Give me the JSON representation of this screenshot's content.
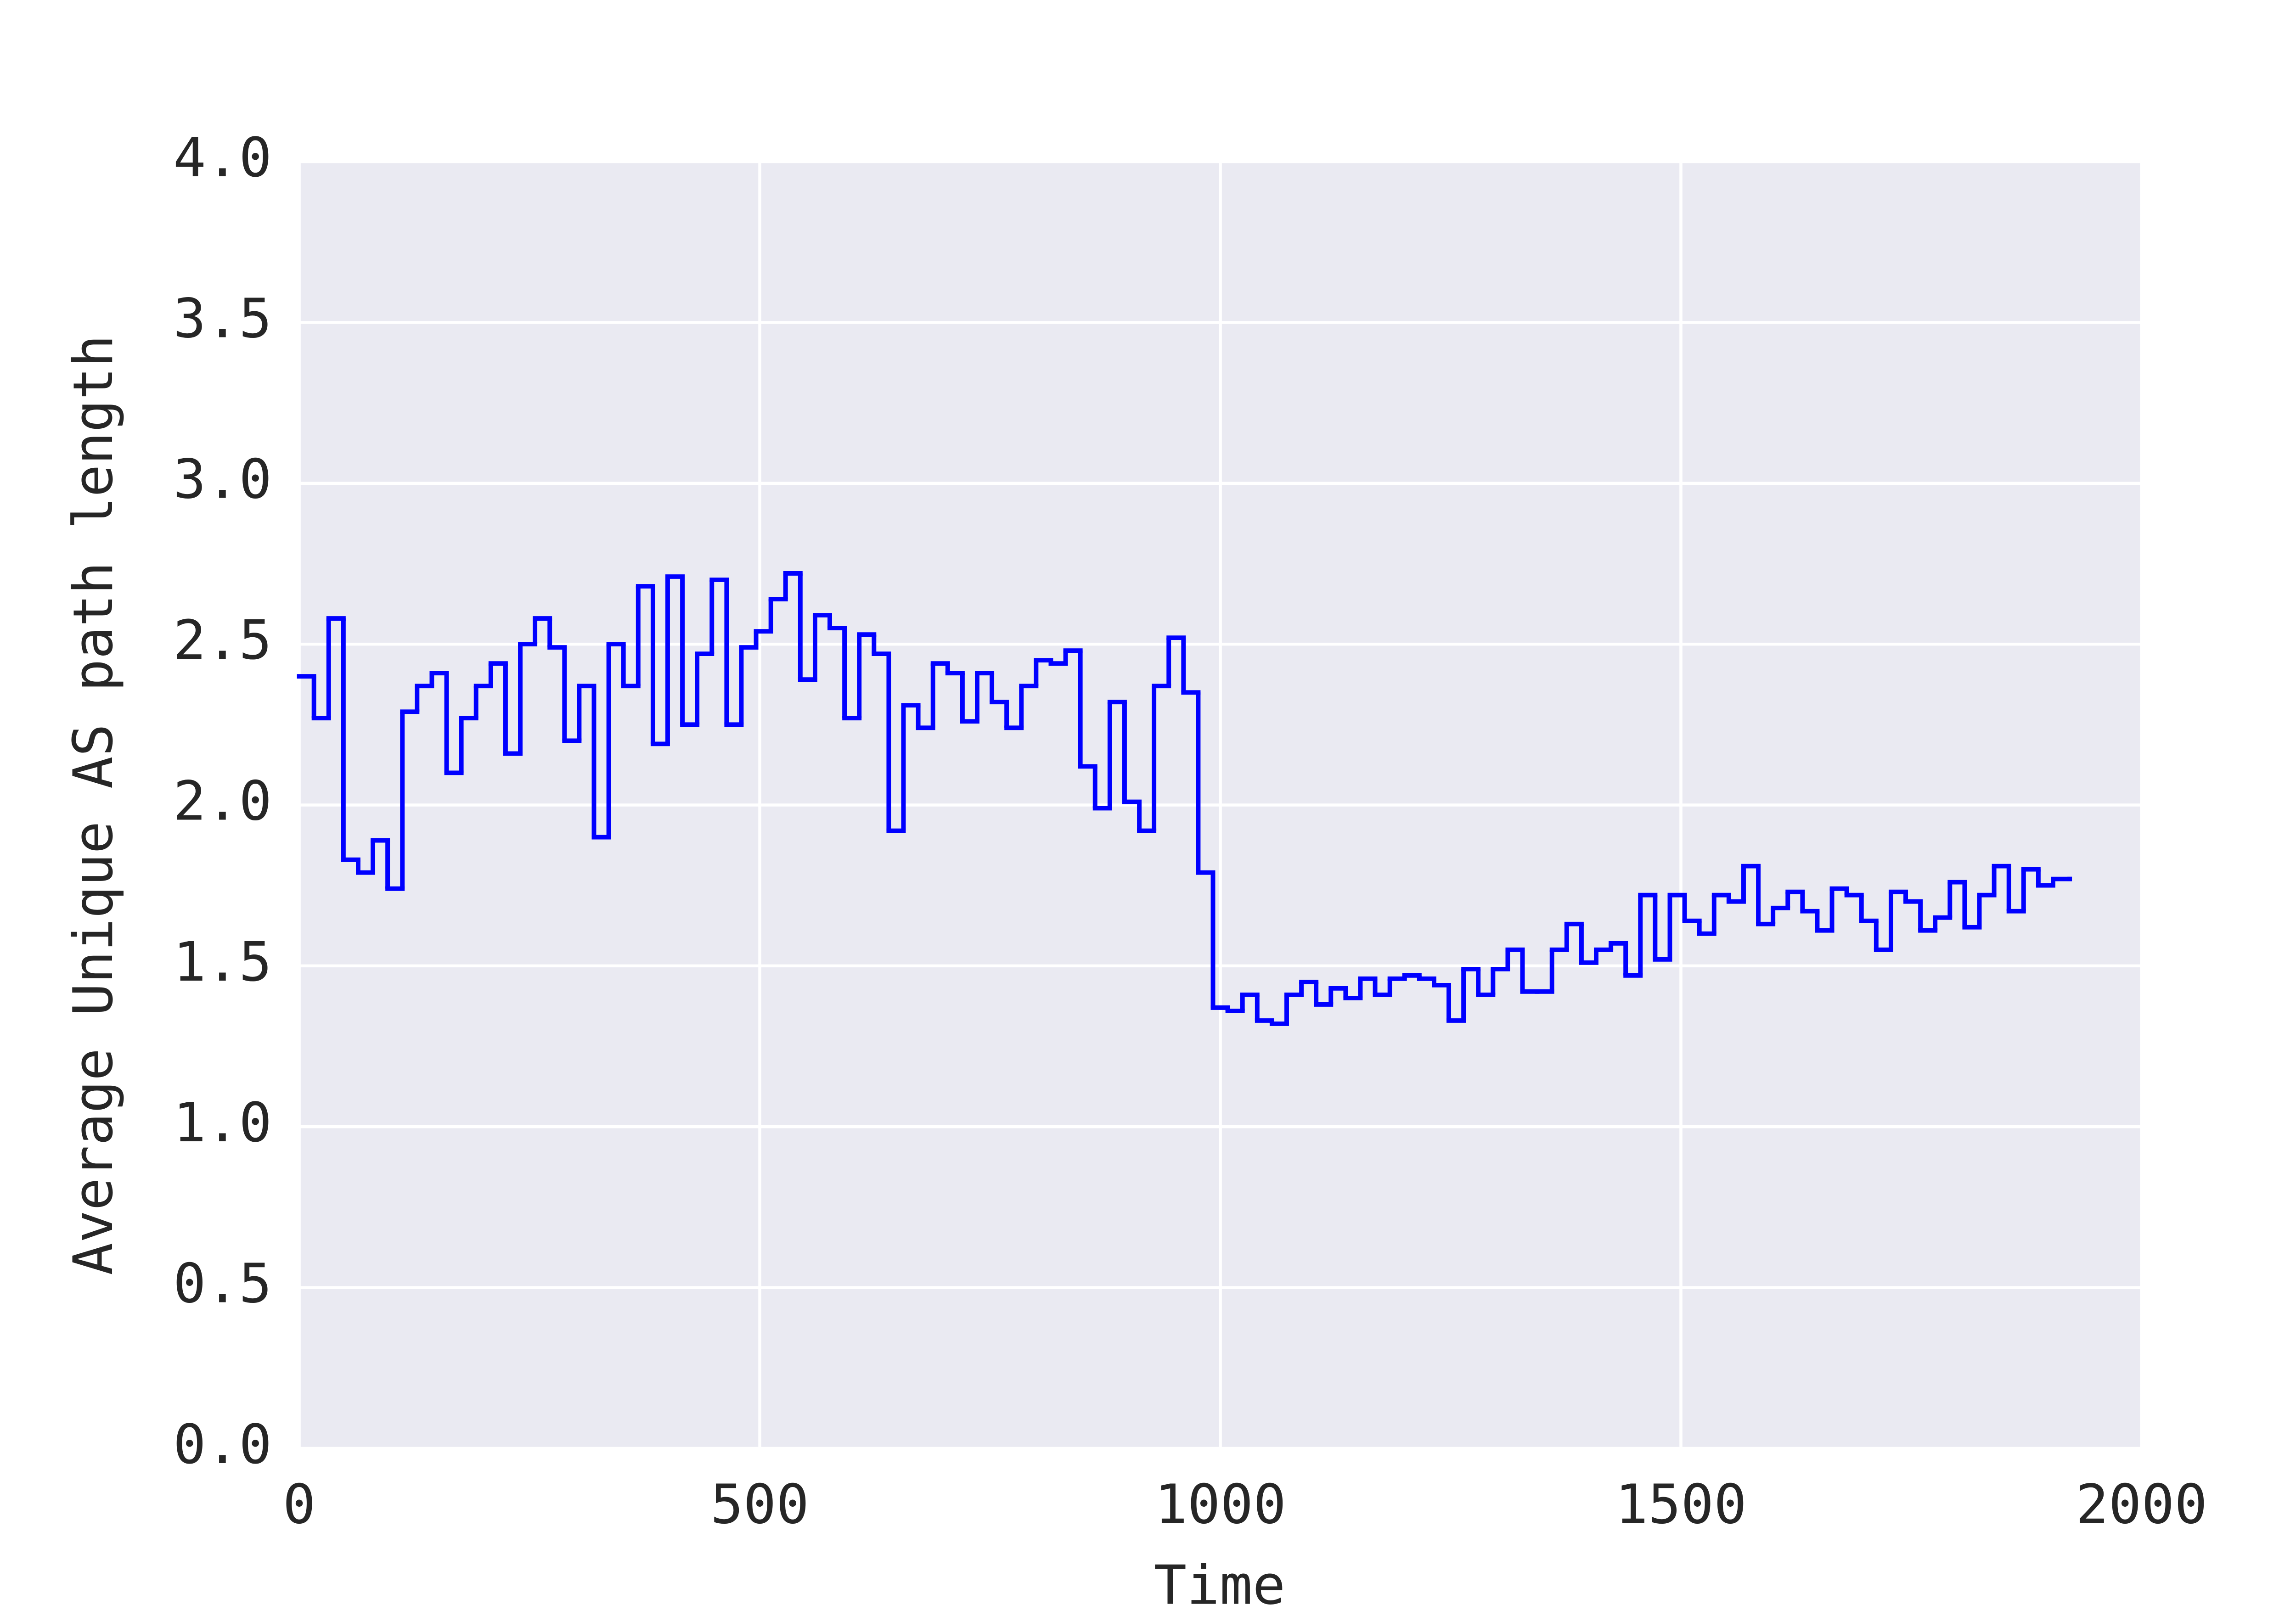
{
  "chart_data": {
    "type": "step",
    "xlabel": "Time",
    "ylabel": "Average Unique AS path length",
    "xlim": [
      0,
      2000
    ],
    "ylim": [
      0,
      4
    ],
    "xticks": [
      0,
      500,
      1000,
      1500,
      2000
    ],
    "yticks": [
      {
        "value": 0,
        "label": "0.0"
      },
      {
        "value": 0.5,
        "label": "0.5"
      },
      {
        "value": 1,
        "label": "1.0"
      },
      {
        "value": 1.5,
        "label": "1.5"
      },
      {
        "value": 2,
        "label": "2.0"
      },
      {
        "value": 2.5,
        "label": "2.5"
      },
      {
        "value": 3,
        "label": "3.0"
      },
      {
        "value": 3.5,
        "label": "3.5"
      },
      {
        "value": 4,
        "label": "4.0"
      }
    ],
    "grid": true,
    "background": "#eaeaf2",
    "color": "#0000ff",
    "x": [
      0,
      16,
      32,
      48,
      64,
      80,
      96,
      112,
      128,
      144,
      160,
      176,
      192,
      208,
      224,
      240,
      256,
      272,
      288,
      304,
      320,
      336,
      352,
      368,
      384,
      400,
      416,
      432,
      448,
      464,
      480,
      496,
      512,
      528,
      544,
      560,
      576,
      592,
      608,
      624,
      640,
      656,
      672,
      688,
      704,
      720,
      736,
      752,
      768,
      784,
      800,
      816,
      832,
      848,
      864,
      880,
      896,
      912,
      928,
      944,
      960,
      976,
      992,
      1008,
      1024,
      1040,
      1056,
      1072,
      1088,
      1104,
      1120,
      1136,
      1152,
      1168,
      1184,
      1200,
      1216,
      1232,
      1248,
      1264,
      1280,
      1296,
      1312,
      1328,
      1344,
      1360,
      1376,
      1392,
      1408,
      1424,
      1440,
      1456,
      1472,
      1488,
      1504,
      1520,
      1536,
      1552,
      1568,
      1584,
      1600,
      1616,
      1632,
      1648,
      1664,
      1680,
      1696,
      1712,
      1728,
      1744,
      1760,
      1776,
      1792,
      1808,
      1824,
      1840,
      1856,
      1872,
      1888,
      1904,
      1922
    ],
    "values": [
      2.4,
      2.27,
      2.58,
      1.83,
      1.79,
      1.89,
      1.74,
      2.29,
      2.37,
      2.41,
      2.1,
      2.27,
      2.37,
      2.44,
      2.16,
      2.5,
      2.58,
      2.49,
      2.2,
      2.37,
      1.9,
      2.5,
      2.37,
      2.68,
      2.19,
      2.71,
      2.25,
      2.47,
      2.7,
      2.25,
      2.49,
      2.54,
      2.64,
      2.72,
      2.39,
      2.59,
      2.55,
      2.27,
      2.53,
      2.47,
      1.92,
      2.31,
      2.24,
      2.44,
      2.41,
      2.26,
      2.41,
      2.32,
      2.24,
      2.37,
      2.45,
      2.44,
      2.48,
      2.12,
      1.99,
      2.32,
      2.01,
      1.92,
      2.37,
      2.52,
      2.35,
      1.79,
      1.37,
      1.36,
      1.41,
      1.33,
      1.32,
      1.41,
      1.45,
      1.38,
      1.43,
      1.4,
      1.46,
      1.41,
      1.46,
      1.47,
      1.46,
      1.44,
      1.33,
      1.49,
      1.41,
      1.49,
      1.55,
      1.42,
      1.42,
      1.55,
      1.63,
      1.51,
      1.55,
      1.57,
      1.47,
      1.72,
      1.52,
      1.72,
      1.64,
      1.6,
      1.72,
      1.7,
      1.81,
      1.63,
      1.68,
      1.73,
      1.67,
      1.61,
      1.74,
      1.72,
      1.64,
      1.55,
      1.73,
      1.7,
      1.61,
      1.65,
      1.76,
      1.62,
      1.72,
      1.81,
      1.67,
      1.8,
      1.75,
      1.77,
      1.77
    ]
  }
}
